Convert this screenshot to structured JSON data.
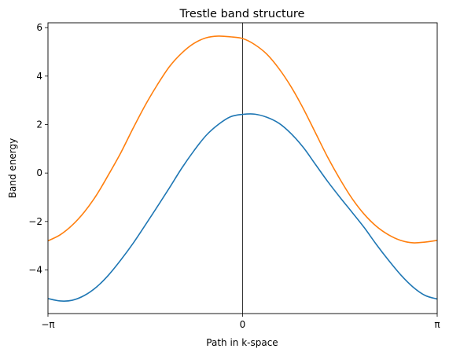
{
  "chart_data": {
    "type": "line",
    "title": "Trestle band structure",
    "xlabel": "Path in k-space",
    "ylabel": "Band energy",
    "xlim": [
      -3.14159,
      3.14159
    ],
    "ylim": [
      -5.8,
      6.2
    ],
    "xticks": [
      {
        "value": -3.14159,
        "label": "−π"
      },
      {
        "value": 0,
        "label": "0"
      },
      {
        "value": 3.14159,
        "label": "π"
      }
    ],
    "yticks": [
      {
        "value": 6,
        "label": "6"
      },
      {
        "value": 4,
        "label": "4"
      },
      {
        "value": 2,
        "label": "2"
      },
      {
        "value": 0,
        "label": "0"
      },
      {
        "value": -2,
        "label": "−2"
      },
      {
        "value": -4,
        "label": "−4"
      }
    ],
    "vline": {
      "x": 0,
      "color": "#000000"
    },
    "grid": false,
    "series": [
      {
        "color": "#1f77b4",
        "x": [
          -3.142,
          -2.945,
          -2.749,
          -2.552,
          -2.356,
          -2.16,
          -1.963,
          -1.767,
          -1.571,
          -1.374,
          -1.178,
          -0.982,
          -0.785,
          -0.589,
          -0.393,
          -0.196,
          0.0,
          0.196,
          0.393,
          0.589,
          0.785,
          0.982,
          1.178,
          1.374,
          1.571,
          1.767,
          1.963,
          2.16,
          2.356,
          2.552,
          2.749,
          2.945,
          3.142
        ],
        "values": [
          -5.18,
          -5.28,
          -5.25,
          -5.05,
          -4.7,
          -4.2,
          -3.58,
          -2.9,
          -2.15,
          -1.38,
          -0.6,
          0.2,
          0.92,
          1.55,
          2.0,
          2.32,
          2.42,
          2.43,
          2.3,
          2.05,
          1.62,
          1.05,
          0.35,
          -0.35,
          -1.0,
          -1.62,
          -2.25,
          -2.95,
          -3.6,
          -4.2,
          -4.7,
          -5.05,
          -5.2
        ]
      },
      {
        "color": "#ff7f0e",
        "x": [
          -3.142,
          -2.945,
          -2.749,
          -2.552,
          -2.356,
          -2.16,
          -1.963,
          -1.767,
          -1.571,
          -1.374,
          -1.178,
          -0.982,
          -0.785,
          -0.589,
          -0.393,
          -0.196,
          0.0,
          0.196,
          0.393,
          0.589,
          0.785,
          0.982,
          1.178,
          1.374,
          1.571,
          1.767,
          1.963,
          2.16,
          2.356,
          2.552,
          2.749,
          2.945,
          3.142
        ],
        "values": [
          -2.8,
          -2.55,
          -2.15,
          -1.6,
          -0.9,
          -0.05,
          0.85,
          1.85,
          2.8,
          3.65,
          4.4,
          4.95,
          5.35,
          5.58,
          5.65,
          5.62,
          5.55,
          5.3,
          4.9,
          4.3,
          3.55,
          2.65,
          1.65,
          0.65,
          -0.25,
          -1.05,
          -1.7,
          -2.2,
          -2.55,
          -2.78,
          -2.88,
          -2.85,
          -2.78
        ]
      }
    ]
  }
}
